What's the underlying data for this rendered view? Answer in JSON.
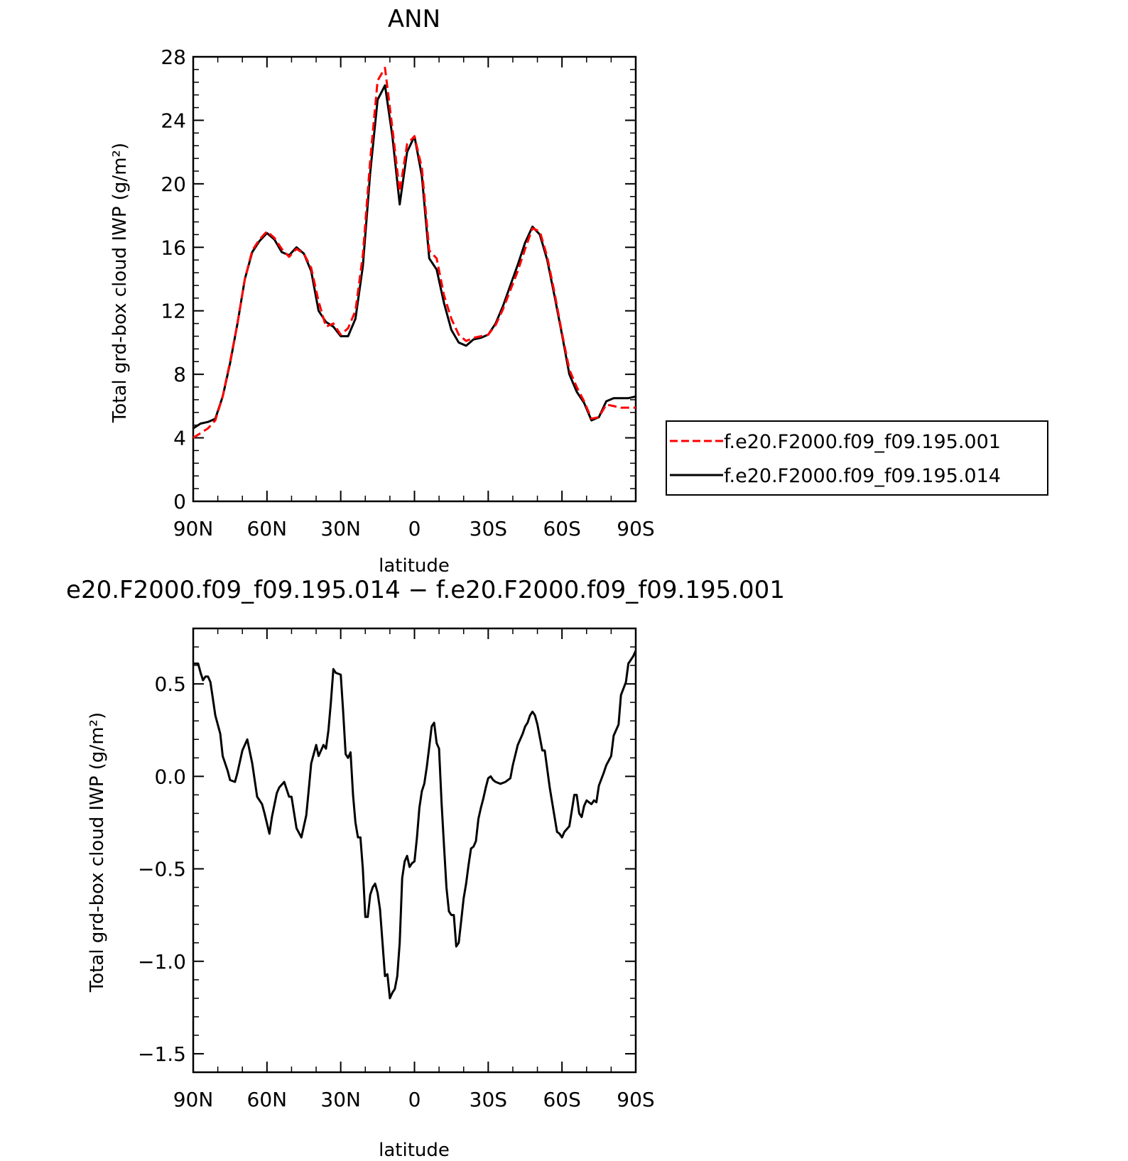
{
  "chart_data": [
    {
      "type": "line",
      "title": "ANN",
      "xlabel": "latitude",
      "ylabel": "Total grd-box cloud IWP (g/m²)",
      "x_axis": "latitude, degrees (north positive); plotted 90N on the left to 90S on the right",
      "xlim": [
        90,
        -90
      ],
      "ylim": [
        0,
        28
      ],
      "xticks": [
        90,
        60,
        30,
        0,
        -30,
        -60,
        -90
      ],
      "xtick_labels": [
        "90N",
        "60N",
        "30N",
        "0",
        "30S",
        "60S",
        "90S"
      ],
      "yticks": [
        0,
        4,
        8,
        12,
        16,
        20,
        24,
        28
      ],
      "ytick_labels": [
        "0",
        "4",
        "8",
        "12",
        "16",
        "20",
        "24",
        "28"
      ],
      "grid": false,
      "legend_position": "right, outside the plot",
      "x": [
        90,
        87,
        84,
        81,
        78,
        75,
        72,
        69,
        66,
        63,
        60,
        57,
        54,
        51,
        48,
        45,
        42,
        39,
        36,
        33,
        30,
        27,
        24,
        21,
        18,
        15,
        12,
        9,
        6,
        3,
        0,
        -3,
        -6,
        -9,
        -12,
        -15,
        -18,
        -21,
        -24,
        -27,
        -30,
        -33,
        -36,
        -39,
        -42,
        -45,
        -48,
        -51,
        -54,
        -57,
        -60,
        -63,
        -66,
        -69,
        -72,
        -75,
        -78,
        -81,
        -84,
        -87,
        -90
      ],
      "series": [
        {
          "name": "f.e20.F2000.f09_f09.195.001",
          "color": "#ff0000",
          "dash": "dashed",
          "values": [
            4.0,
            4.3,
            4.6,
            5.1,
            6.6,
            8.8,
            11.2,
            14.0,
            15.8,
            16.5,
            17.0,
            16.6,
            15.9,
            15.4,
            15.9,
            15.6,
            14.7,
            12.6,
            11.0,
            11.2,
            10.5,
            10.9,
            12.0,
            15.5,
            21.5,
            26.5,
            27.3,
            23.5,
            19.5,
            22.5,
            23.0,
            21.0,
            15.8,
            15.3,
            13.0,
            11.5,
            10.5,
            10.1,
            10.3,
            10.4,
            10.5,
            11.1,
            12.1,
            13.3,
            14.5,
            15.9,
            17.2,
            17.0,
            15.4,
            13.1,
            10.6,
            8.3,
            7.2,
            6.3,
            5.2,
            5.3,
            6.1,
            6.0,
            5.9,
            5.9,
            5.9
          ]
        },
        {
          "name": "f.e20.F2000.f09_f09.195.014",
          "color": "#000000",
          "dash": "solid",
          "values": [
            4.6,
            4.9,
            5.0,
            5.2,
            6.6,
            8.7,
            11.2,
            14.0,
            15.7,
            16.4,
            16.9,
            16.5,
            15.7,
            15.5,
            16.0,
            15.6,
            14.5,
            12.0,
            11.3,
            11.0,
            10.4,
            10.4,
            11.5,
            14.8,
            20.7,
            25.3,
            26.2,
            23.0,
            18.7,
            22.0,
            23.0,
            20.5,
            15.3,
            14.6,
            12.5,
            10.8,
            10.0,
            9.8,
            10.2,
            10.3,
            10.5,
            11.2,
            12.3,
            13.6,
            14.9,
            16.3,
            17.3,
            16.8,
            15.2,
            12.9,
            10.5,
            8.0,
            6.9,
            6.2,
            5.1,
            5.3,
            6.3,
            6.5,
            6.5,
            6.5,
            6.6
          ]
        }
      ]
    },
    {
      "type": "line",
      "title": "e20.F2000.f09_f09.195.014 − f.e20.F2000.f09_f09.195.001",
      "xlabel": "latitude",
      "ylabel": "Total grd-box cloud IWP (g/m²)",
      "x_axis": "latitude, degrees (north positive); plotted 90N on the left to 90S on the right",
      "xlim": [
        90,
        -90
      ],
      "ylim": [
        -1.6,
        0.8
      ],
      "xticks": [
        90,
        60,
        30,
        0,
        -30,
        -60,
        -90
      ],
      "xtick_labels": [
        "90N",
        "60N",
        "30N",
        "0",
        "30S",
        "60S",
        "90S"
      ],
      "yticks": [
        0.5,
        0.0,
        -0.5,
        -1.0,
        -1.5
      ],
      "ytick_labels": [
        "0.5",
        "0.0",
        "−0.5",
        "−1.0",
        "−1.5"
      ],
      "grid": false,
      "series": [
        {
          "color": "#000000",
          "dash": "solid",
          "x": [
            90,
            88,
            87,
            86,
            85,
            84,
            83,
            82,
            81,
            79,
            78,
            76,
            75,
            73,
            72,
            70,
            68,
            66,
            64,
            62,
            61,
            59,
            58,
            56,
            55,
            53,
            51,
            50,
            48,
            46,
            44,
            43,
            42,
            40,
            39,
            37,
            36,
            35,
            34,
            33,
            32,
            30,
            29,
            28,
            27,
            26,
            25,
            24,
            23,
            22,
            21,
            20,
            19,
            18,
            17,
            16,
            15,
            14,
            13,
            12,
            11,
            10,
            9,
            8,
            7,
            6,
            5,
            4,
            3,
            2,
            1,
            0,
            -1,
            -2,
            -3,
            -4,
            -5,
            -6,
            -7,
            -8,
            -9,
            -10,
            -11,
            -12,
            -13,
            -14,
            -15,
            -16,
            -17,
            -18,
            -19,
            -20,
            -21,
            -22,
            -23,
            -24,
            -25,
            -26,
            -27,
            -28,
            -29,
            -30,
            -31,
            -32,
            -33,
            -35,
            -37,
            -39,
            -40,
            -42,
            -44,
            -45,
            -46,
            -47,
            -48,
            -49,
            -50,
            -52,
            -53,
            -55,
            -56,
            -58,
            -59,
            -60,
            -61,
            -63,
            -65,
            -66,
            -67,
            -68,
            -69,
            -70,
            -71,
            -72,
            -73,
            -74,
            -75,
            -77,
            -78,
            -80,
            -81,
            -83,
            -84,
            -86,
            -87,
            -89,
            -90
          ],
          "values": [
            0.61,
            0.61,
            0.56,
            0.52,
            0.54,
            0.54,
            0.51,
            0.42,
            0.33,
            0.23,
            0.11,
            0.03,
            -0.02,
            -0.03,
            0.02,
            0.14,
            0.2,
            0.07,
            -0.11,
            -0.15,
            -0.2,
            -0.31,
            -0.22,
            -0.09,
            -0.06,
            -0.03,
            -0.11,
            -0.11,
            -0.28,
            -0.33,
            -0.21,
            -0.07,
            0.07,
            0.17,
            0.11,
            0.17,
            0.15,
            0.25,
            0.4,
            0.58,
            0.56,
            0.55,
            0.35,
            0.12,
            0.1,
            0.13,
            -0.1,
            -0.25,
            -0.33,
            -0.33,
            -0.5,
            -0.76,
            -0.76,
            -0.64,
            -0.6,
            -0.58,
            -0.63,
            -0.72,
            -0.9,
            -1.08,
            -1.07,
            -1.2,
            -1.17,
            -1.15,
            -1.08,
            -0.9,
            -0.55,
            -0.46,
            -0.43,
            -0.49,
            -0.47,
            -0.46,
            -0.33,
            -0.17,
            -0.08,
            -0.04,
            0.05,
            0.16,
            0.27,
            0.29,
            0.18,
            0.15,
            -0.14,
            -0.37,
            -0.6,
            -0.73,
            -0.75,
            -0.75,
            -0.92,
            -0.9,
            -0.78,
            -0.66,
            -0.58,
            -0.48,
            -0.39,
            -0.38,
            -0.35,
            -0.23,
            -0.17,
            -0.12,
            -0.06,
            -0.01,
            0.0,
            -0.02,
            -0.03,
            -0.04,
            -0.03,
            -0.01,
            0.06,
            0.17,
            0.23,
            0.27,
            0.29,
            0.33,
            0.35,
            0.33,
            0.28,
            0.14,
            0.14,
            -0.06,
            -0.14,
            -0.3,
            -0.31,
            -0.33,
            -0.3,
            -0.27,
            -0.1,
            -0.1,
            -0.2,
            -0.22,
            -0.16,
            -0.13,
            -0.14,
            -0.15,
            -0.13,
            -0.14,
            -0.05,
            0.02,
            0.06,
            0.11,
            0.22,
            0.28,
            0.44,
            0.51,
            0.61,
            0.65,
            0.68
          ]
        }
      ]
    }
  ]
}
